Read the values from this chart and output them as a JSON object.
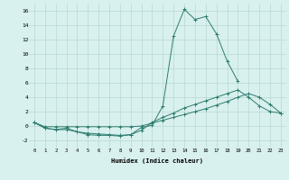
{
  "xlabel": "Humidex (Indice chaleur)",
  "x_values": [
    0,
    1,
    2,
    3,
    4,
    5,
    6,
    7,
    8,
    9,
    10,
    11,
    12,
    13,
    14,
    15,
    16,
    17,
    18,
    19,
    20,
    21,
    22,
    23
  ],
  "line1": [
    0.5,
    -0.3,
    -0.5,
    -0.3,
    -0.8,
    -1.2,
    -1.3,
    -1.3,
    -1.4,
    -1.2,
    -0.2,
    0.1,
    2.8,
    12.5,
    16.2,
    14.8,
    15.2,
    12.8,
    9.0,
    6.2,
    null,
    null,
    null,
    null
  ],
  "line2": [
    0.5,
    -0.3,
    -0.5,
    -0.5,
    -0.8,
    -1.0,
    -1.1,
    -1.2,
    -1.3,
    -1.2,
    -0.6,
    0.5,
    1.2,
    1.8,
    2.5,
    3.0,
    3.5,
    4.0,
    4.5,
    5.0,
    4.0,
    2.8,
    2.0,
    1.8
  ],
  "line3": [
    0.5,
    -0.1,
    -0.1,
    -0.1,
    -0.1,
    -0.1,
    -0.1,
    -0.1,
    -0.1,
    -0.1,
    0.0,
    0.4,
    0.8,
    1.2,
    1.6,
    2.0,
    2.4,
    2.9,
    3.4,
    4.0,
    4.5,
    4.0,
    3.0,
    1.8
  ],
  "ylim": [
    -3,
    17
  ],
  "xlim": [
    -0.5,
    23.5
  ],
  "yticks": [
    -2,
    0,
    2,
    4,
    6,
    8,
    10,
    12,
    14,
    16
  ],
  "xticks": [
    0,
    1,
    2,
    3,
    4,
    5,
    6,
    7,
    8,
    9,
    10,
    11,
    12,
    13,
    14,
    15,
    16,
    17,
    18,
    19,
    20,
    21,
    22,
    23
  ],
  "line_color": "#2d7d6e",
  "bg_color": "#d8f0ee",
  "grid_color": "#b8d8d4"
}
